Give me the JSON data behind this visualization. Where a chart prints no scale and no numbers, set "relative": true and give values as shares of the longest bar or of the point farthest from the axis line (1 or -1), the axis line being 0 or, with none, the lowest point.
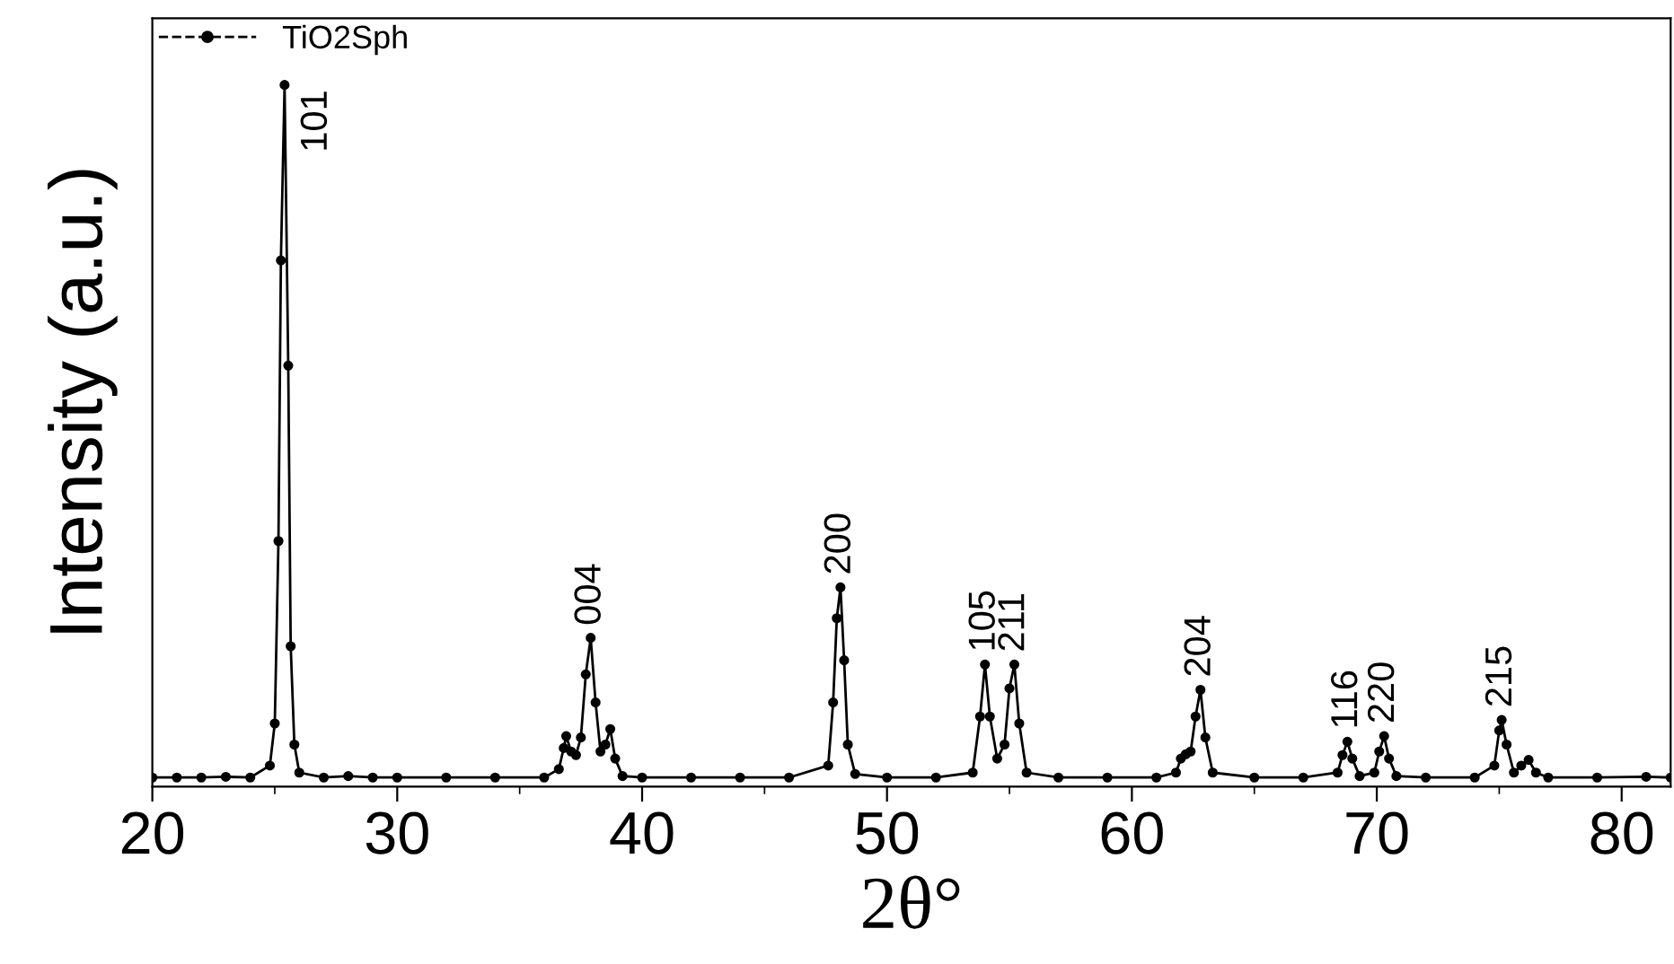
{
  "chart_data": {
    "type": "line",
    "relative": true,
    "xlabel": "2θ°",
    "ylabel": "Intensity (a.u.)",
    "xlim": [
      20,
      82
    ],
    "xticks": [
      20,
      30,
      40,
      50,
      60,
      70,
      80
    ],
    "grid": false,
    "legend": "top left",
    "marker": "circle",
    "line_style": "solid",
    "tick_labels": "x",
    "series": [
      {
        "name": "TiO2Sph",
        "color": "#000000",
        "x": [
          20,
          21,
          22,
          23,
          24,
          24.8,
          25.0,
          25.15,
          25.25,
          25.4,
          25.55,
          25.65,
          25.8,
          26.0,
          27,
          28,
          29,
          30,
          32,
          34,
          36,
          36.6,
          36.8,
          36.9,
          37.1,
          37.3,
          37.5,
          37.7,
          37.9,
          38.1,
          38.3,
          38.5,
          38.7,
          38.9,
          39.2,
          40,
          42,
          44,
          46,
          47.6,
          47.8,
          47.95,
          48.1,
          48.25,
          48.4,
          48.7,
          50,
          52,
          53.5,
          53.8,
          54.0,
          54.2,
          54.5,
          54.8,
          55.0,
          55.2,
          55.4,
          55.7,
          57,
          59,
          61,
          61.8,
          62.0,
          62.2,
          62.4,
          62.6,
          62.8,
          63.0,
          63.3,
          65,
          67,
          68.4,
          68.6,
          68.8,
          69.0,
          69.3,
          69.9,
          70.1,
          70.3,
          70.5,
          70.8,
          72,
          74,
          74.8,
          75.0,
          75.1,
          75.3,
          75.6,
          75.9,
          76.2,
          76.5,
          77,
          79,
          81,
          82
        ],
        "values": [
          0.013,
          0.013,
          0.013,
          0.014,
          0.013,
          0.03,
          0.09,
          0.35,
          0.75,
          1.0,
          0.6,
          0.2,
          0.06,
          0.02,
          0.013,
          0.015,
          0.013,
          0.013,
          0.013,
          0.013,
          0.013,
          0.025,
          0.055,
          0.072,
          0.05,
          0.045,
          0.07,
          0.16,
          0.212,
          0.12,
          0.05,
          0.06,
          0.082,
          0.04,
          0.015,
          0.013,
          0.013,
          0.013,
          0.013,
          0.03,
          0.12,
          0.24,
          0.284,
          0.18,
          0.06,
          0.018,
          0.013,
          0.013,
          0.02,
          0.1,
          0.174,
          0.1,
          0.04,
          0.06,
          0.14,
          0.174,
          0.09,
          0.02,
          0.013,
          0.013,
          0.013,
          0.02,
          0.04,
          0.046,
          0.05,
          0.1,
          0.138,
          0.07,
          0.02,
          0.013,
          0.013,
          0.02,
          0.045,
          0.064,
          0.04,
          0.015,
          0.02,
          0.05,
          0.072,
          0.04,
          0.015,
          0.013,
          0.013,
          0.03,
          0.08,
          0.095,
          0.06,
          0.02,
          0.03,
          0.038,
          0.02,
          0.013,
          0.013,
          0.014,
          0.013
        ]
      }
    ],
    "annotations": [
      {
        "text": "101",
        "x": 25.4,
        "y": 1.0
      },
      {
        "text": "004",
        "x": 37.9,
        "y": 0.212
      },
      {
        "text": "200",
        "x": 48.1,
        "y": 0.284
      },
      {
        "text": "105",
        "x": 54.0,
        "y": 0.174
      },
      {
        "text": "211",
        "x": 55.2,
        "y": 0.174
      },
      {
        "text": "204",
        "x": 62.8,
        "y": 0.138
      },
      {
        "text": "116",
        "x": 68.8,
        "y": 0.064
      },
      {
        "text": "220",
        "x": 70.3,
        "y": 0.072
      },
      {
        "text": "215",
        "x": 75.1,
        "y": 0.095
      }
    ]
  }
}
